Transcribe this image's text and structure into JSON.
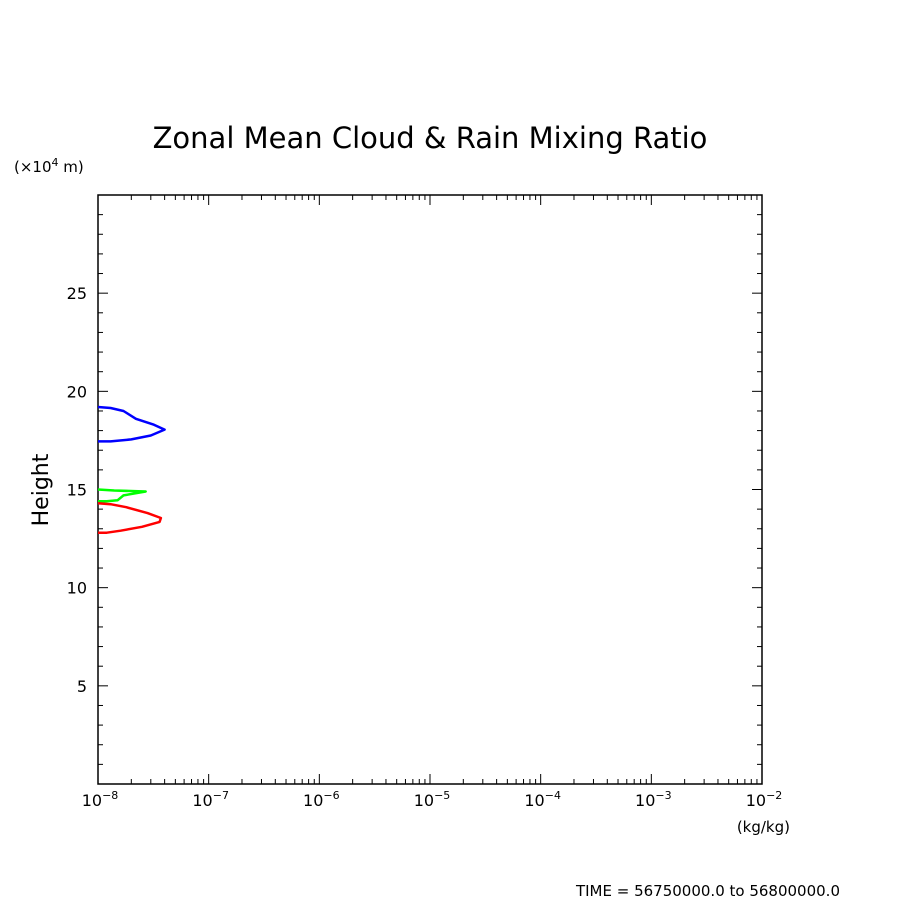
{
  "chart_data": {
    "type": "line",
    "title": "Zonal Mean Cloud & Rain Mixing Ratio",
    "ylabel": "Height",
    "yunit": "(×10",
    "yunit_exp": "4",
    "yunit_end": " m)",
    "xunit": "(kg/kg)",
    "xscale": "log",
    "xlim": [
      1e-08,
      0.01
    ],
    "ylim": [
      0,
      30
    ],
    "x_ticks": [
      {
        "value": 1e-08,
        "base": "10",
        "exp": "−8"
      },
      {
        "value": 1e-07,
        "base": "10",
        "exp": "−7"
      },
      {
        "value": 1e-06,
        "base": "10",
        "exp": "−6"
      },
      {
        "value": 1e-05,
        "base": "10",
        "exp": "−5"
      },
      {
        "value": 0.0001,
        "base": "10",
        "exp": "−4"
      },
      {
        "value": 0.001,
        "base": "10",
        "exp": "−3"
      },
      {
        "value": 0.01,
        "base": "10",
        "exp": "−2"
      }
    ],
    "y_ticks": [
      "5",
      "10",
      "15",
      "20",
      "25"
    ],
    "series": [
      {
        "color": "#0000ff",
        "points": [
          [
            1e-08,
            19.2
          ],
          [
            1.3e-08,
            19.15
          ],
          [
            1.7e-08,
            19.0
          ],
          [
            2.2e-08,
            18.6
          ],
          [
            3.2e-08,
            18.3
          ],
          [
            4e-08,
            18.05
          ],
          [
            3e-08,
            17.75
          ],
          [
            2e-08,
            17.55
          ],
          [
            1.3e-08,
            17.45
          ],
          [
            1e-08,
            17.45
          ]
        ]
      },
      {
        "color": "#00ff00",
        "points": [
          [
            1e-08,
            15.0
          ],
          [
            1.4e-08,
            14.95
          ],
          [
            2.7e-08,
            14.9
          ],
          [
            1.7e-08,
            14.7
          ],
          [
            1.5e-08,
            14.45
          ],
          [
            1.2e-08,
            14.4
          ],
          [
            1e-08,
            14.4
          ]
        ]
      },
      {
        "color": "#ff0000",
        "points": [
          [
            1e-08,
            14.3
          ],
          [
            1.3e-08,
            14.25
          ],
          [
            1.8e-08,
            14.1
          ],
          [
            2.8e-08,
            13.8
          ],
          [
            3.7e-08,
            13.55
          ],
          [
            3.6e-08,
            13.35
          ],
          [
            2.5e-08,
            13.1
          ],
          [
            1.6e-08,
            12.9
          ],
          [
            1.2e-08,
            12.8
          ],
          [
            1e-08,
            12.8
          ]
        ]
      }
    ]
  },
  "footer": {
    "time_text": "TIME = 56750000.0 to 56800000.0"
  }
}
